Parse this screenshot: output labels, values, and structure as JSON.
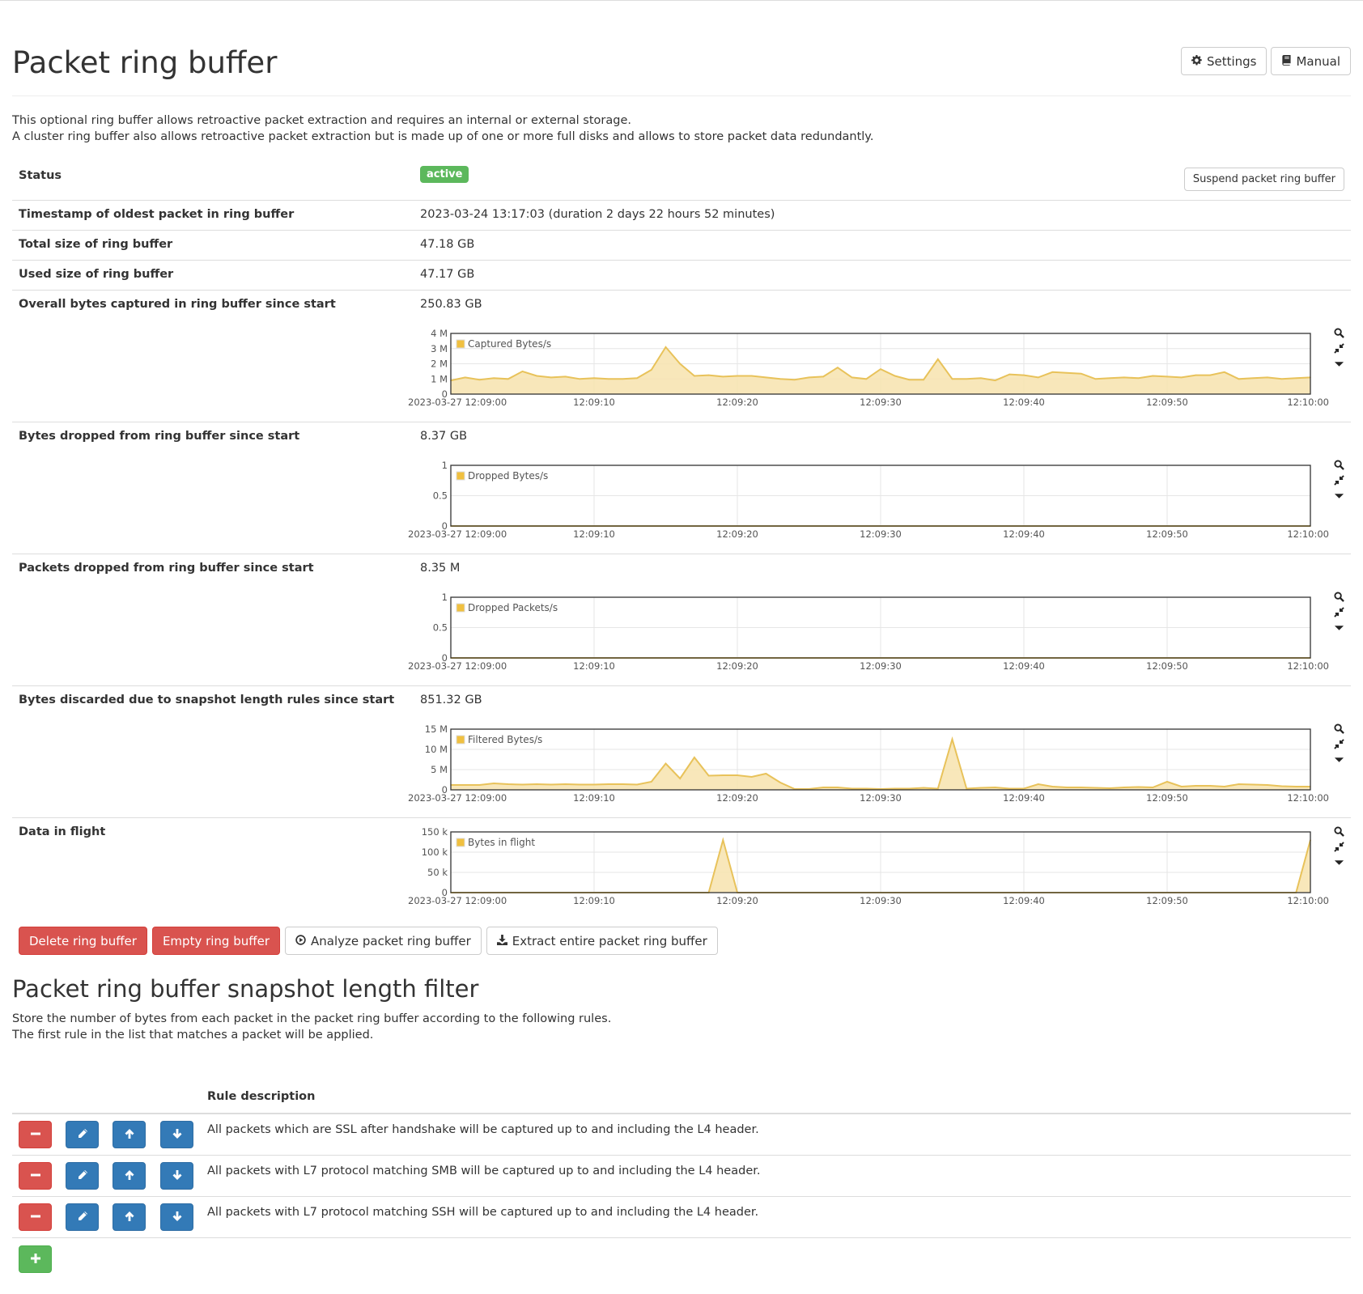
{
  "header": {
    "title": "Packet ring buffer",
    "settings_label": "Settings",
    "manual_label": "Manual"
  },
  "description": [
    "This optional ring buffer allows retroactive packet extraction and requires an internal or external storage.",
    "A cluster ring buffer also allows retroactive packet extraction but is made up of one or more full disks and allows to store packet data redundantly."
  ],
  "status": {
    "label": "Status",
    "badge": "active",
    "suspend_label": "Suspend packet ring buffer"
  },
  "rows": {
    "oldest": {
      "label": "Timestamp of oldest packet in ring buffer",
      "value": "2023-03-24 13:17:03 (duration 2 days 22 hours 52 minutes)"
    },
    "total": {
      "label": "Total size of ring buffer",
      "value": "47.18 GB"
    },
    "used": {
      "label": "Used size of ring buffer",
      "value": "47.17 GB"
    },
    "captured": {
      "label": "Overall bytes captured in ring buffer since start",
      "value": "250.83 GB"
    },
    "dropped_bytes": {
      "label": "Bytes dropped from ring buffer since start",
      "value": "8.37 GB"
    },
    "dropped_packets": {
      "label": "Packets dropped from ring buffer since start",
      "value": "8.35 M"
    },
    "discarded": {
      "label": "Bytes discarded due to snapshot length rules since start",
      "value": "851.32 GB"
    },
    "inflight": {
      "label": "Data in flight",
      "value": ""
    }
  },
  "chart_data": [
    {
      "id": "captured",
      "type": "area",
      "series": [
        {
          "name": "Captured Bytes/s",
          "values": [
            0.9,
            1.1,
            0.95,
            1.05,
            1.0,
            1.5,
            1.2,
            1.1,
            1.15,
            1.0,
            1.05,
            1.0,
            1.0,
            1.05,
            1.6,
            3.1,
            2.0,
            1.2,
            1.25,
            1.15,
            1.2,
            1.2,
            1.1,
            1.0,
            0.95,
            1.1,
            1.15,
            1.75,
            1.1,
            1.0,
            1.65,
            1.2,
            0.95,
            0.95,
            2.3,
            1.0,
            1.0,
            1.05,
            0.9,
            1.3,
            1.25,
            1.1,
            1.45,
            1.4,
            1.35,
            1.0,
            1.05,
            1.1,
            1.05,
            1.2,
            1.15,
            1.1,
            1.25,
            1.25,
            1.45,
            1.0,
            1.05,
            1.1,
            1.0,
            1.05,
            1.1
          ]
        }
      ],
      "x_ticks": [
        "2023-03-27 12:09:00",
        "12:09:10",
        "12:09:20",
        "12:09:30",
        "12:09:40",
        "12:09:50",
        "12:10:00"
      ],
      "x_range": [
        "2023-03-27 12:09:00",
        "2023-03-27 12:10:00"
      ],
      "ylim": [
        0,
        4000000
      ],
      "y_tick_values": [
        0,
        1000000,
        2000000,
        3000000,
        4000000
      ],
      "y_ticks": [
        "0",
        "1 M",
        "2 M",
        "3 M",
        "4 M"
      ],
      "y_unit": 1000000,
      "legend": "top-left",
      "grid": true
    },
    {
      "id": "dropped_bytes",
      "type": "area",
      "series": [
        {
          "name": "Dropped Bytes/s",
          "values": [
            0,
            0,
            0,
            0,
            0,
            0,
            0,
            0,
            0,
            0,
            0,
            0,
            0,
            0,
            0,
            0,
            0,
            0,
            0,
            0,
            0,
            0,
            0,
            0,
            0,
            0,
            0,
            0,
            0,
            0,
            0,
            0,
            0,
            0,
            0,
            0,
            0,
            0,
            0,
            0,
            0,
            0,
            0,
            0,
            0,
            0,
            0,
            0,
            0,
            0,
            0,
            0,
            0,
            0,
            0,
            0,
            0,
            0,
            0,
            0,
            0
          ]
        }
      ],
      "x_ticks": [
        "2023-03-27 12:09:00",
        "12:09:10",
        "12:09:20",
        "12:09:30",
        "12:09:40",
        "12:09:50",
        "12:10:00"
      ],
      "x_range": [
        "2023-03-27 12:09:00",
        "2023-03-27 12:10:00"
      ],
      "ylim": [
        0,
        1
      ],
      "y_tick_values": [
        0,
        0.5,
        1
      ],
      "y_ticks": [
        "0",
        "0.5",
        "1"
      ],
      "y_unit": 1,
      "legend": "top-left",
      "grid": true
    },
    {
      "id": "dropped_packets",
      "type": "area",
      "series": [
        {
          "name": "Dropped Packets/s",
          "values": [
            0,
            0,
            0,
            0,
            0,
            0,
            0,
            0,
            0,
            0,
            0,
            0,
            0,
            0,
            0,
            0,
            0,
            0,
            0,
            0,
            0,
            0,
            0,
            0,
            0,
            0,
            0,
            0,
            0,
            0,
            0,
            0,
            0,
            0,
            0,
            0,
            0,
            0,
            0,
            0,
            0,
            0,
            0,
            0,
            0,
            0,
            0,
            0,
            0,
            0,
            0,
            0,
            0,
            0,
            0,
            0,
            0,
            0,
            0,
            0,
            0
          ]
        }
      ],
      "x_ticks": [
        "2023-03-27 12:09:00",
        "12:09:10",
        "12:09:20",
        "12:09:30",
        "12:09:40",
        "12:09:50",
        "12:10:00"
      ],
      "x_range": [
        "2023-03-27 12:09:00",
        "2023-03-27 12:10:00"
      ],
      "ylim": [
        0,
        1
      ],
      "y_tick_values": [
        0,
        0.5,
        1
      ],
      "y_ticks": [
        "0",
        "0.5",
        "1"
      ],
      "y_unit": 1,
      "legend": "top-left",
      "grid": true
    },
    {
      "id": "discarded",
      "type": "area",
      "series": [
        {
          "name": "Filtered Bytes/s",
          "values": [
            1.2,
            1.2,
            1.2,
            1.6,
            1.4,
            1.3,
            1.4,
            1.3,
            1.4,
            1.3,
            1.3,
            1.4,
            1.4,
            1.3,
            2.0,
            6.5,
            2.8,
            8.0,
            3.5,
            3.6,
            3.6,
            3.2,
            4.0,
            1.8,
            0.2,
            0.2,
            0.6,
            0.6,
            0.3,
            0.3,
            0.2,
            0.3,
            0.3,
            0.5,
            0.3,
            12.5,
            0.3,
            0.5,
            0.6,
            0.3,
            0.3,
            1.4,
            0.8,
            0.6,
            0.6,
            0.5,
            0.4,
            0.6,
            0.7,
            0.6,
            2.0,
            0.8,
            1.0,
            1.0,
            0.8,
            1.4,
            1.3,
            1.2,
            0.9,
            0.8,
            0.8
          ]
        }
      ],
      "x_ticks": [
        "2023-03-27 12:09:00",
        "12:09:10",
        "12:09:20",
        "12:09:30",
        "12:09:40",
        "12:09:50",
        "12:10:00"
      ],
      "x_range": [
        "2023-03-27 12:09:00",
        "2023-03-27 12:10:00"
      ],
      "ylim": [
        0,
        15000000
      ],
      "y_tick_values": [
        0,
        5000000,
        10000000,
        15000000
      ],
      "y_ticks": [
        "0",
        "5 M",
        "10 M",
        "15 M"
      ],
      "y_unit": 1000000,
      "legend": "top-left",
      "grid": true
    },
    {
      "id": "inflight",
      "type": "area",
      "series": [
        {
          "name": "Bytes in flight",
          "values": [
            0,
            0,
            0,
            0,
            0,
            0,
            0,
            0,
            0,
            0,
            0,
            0,
            0,
            0,
            0,
            0,
            0,
            0,
            0,
            130,
            0,
            0,
            0,
            0,
            0,
            0,
            0,
            0,
            0,
            0,
            0,
            0,
            0,
            0,
            0,
            0,
            0,
            0,
            0,
            0,
            0,
            0,
            0,
            0,
            0,
            0,
            0,
            0,
            0,
            0,
            0,
            0,
            0,
            0,
            0,
            0,
            0,
            0,
            0,
            0,
            130
          ]
        }
      ],
      "x_ticks": [
        "2023-03-27 12:09:00",
        "12:09:10",
        "12:09:20",
        "12:09:30",
        "12:09:40",
        "12:09:50",
        "12:10:00"
      ],
      "x_range": [
        "2023-03-27 12:09:00",
        "2023-03-27 12:10:00"
      ],
      "ylim": [
        0,
        150000
      ],
      "y_tick_values": [
        0,
        50000,
        100000,
        150000
      ],
      "y_ticks": [
        "0",
        "50 k",
        "100 k",
        "150 k"
      ],
      "y_unit": 1000,
      "legend": "top-left",
      "grid": true
    }
  ],
  "actions": {
    "delete": "Delete ring buffer",
    "empty": "Empty ring buffer",
    "analyze": "Analyze packet ring buffer",
    "extract": "Extract entire packet ring buffer"
  },
  "snapshot": {
    "title": "Packet ring buffer snapshot length filter",
    "description": [
      "Store the number of bytes from each packet in the packet ring buffer according to the following rules.",
      "The first rule in the list that matches a packet will be applied."
    ],
    "column_header": "Rule description",
    "rules": [
      "All packets which are SSL after handshake will be captured up to and including the L4 header.",
      "All packets with L7 protocol matching SMB will be captured up to and including the L4 header.",
      "All packets with L7 protocol matching SSH will be captured up to and including the L4 header."
    ]
  },
  "colors": {
    "series_line": "#e8c25a",
    "series_fill": "#f7e3ae",
    "legend_swatch": "#f0c040",
    "danger": "#d9534f",
    "primary": "#337ab7",
    "success": "#5cb85c"
  },
  "icons": {
    "settings": "gear-icon",
    "manual": "book-icon",
    "analyze": "play-circle-icon",
    "extract": "download-icon",
    "chart_tools": [
      "zoom-icon",
      "reset-zoom-icon",
      "caret-down-icon"
    ],
    "rule_buttons": [
      "minus-icon",
      "pencil-icon",
      "arrow-up-icon",
      "arrow-down-icon"
    ],
    "add": "plus-icon"
  }
}
